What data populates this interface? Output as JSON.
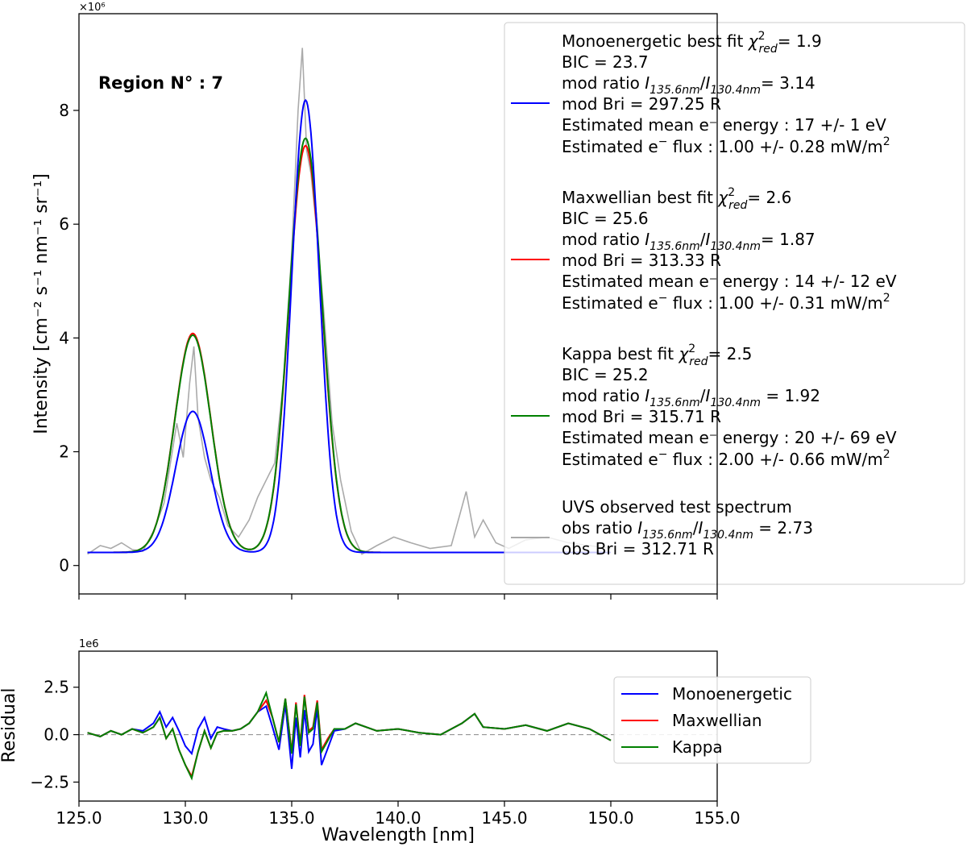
{
  "chart_data": [
    {
      "type": "line",
      "panel": "spectrum",
      "annotation": "Region N° : 7",
      "xlabel": "",
      "ylabel": "Intensity [cm⁻² s⁻¹ nm⁻¹ sr⁻¹]",
      "y_scale_label": "×10⁶",
      "xlim": [
        125.0,
        155.0
      ],
      "ylim": [
        -0.5,
        9.7
      ],
      "yticks": [
        0,
        2,
        4,
        6,
        8
      ],
      "xticks": [
        125.0,
        130.0,
        135.0,
        140.0,
        145.0,
        150.0,
        155.0
      ],
      "grid": false,
      "legend_position": "right",
      "model_params": {
        "Monoenergetic": {
          "peak1": {
            "center": 130.35,
            "height": 2.48,
            "sigma": 0.8
          },
          "peak2": {
            "center": 135.65,
            "height": 7.95,
            "sigma": 0.65
          },
          "baseline": 0.23
        },
        "Maxwellian": {
          "peak1": {
            "center": 130.35,
            "height": 3.85,
            "sigma": 0.85
          },
          "peak2": {
            "center": 135.65,
            "height": 7.15,
            "sigma": 0.78
          },
          "baseline": 0.23
        },
        "Kappa": {
          "peak1": {
            "center": 130.35,
            "height": 3.82,
            "sigma": 0.85
          },
          "peak2": {
            "center": 135.65,
            "height": 7.28,
            "sigma": 0.78
          },
          "baseline": 0.23
        }
      },
      "observed_series": {
        "name": "UVS observed test spectrum",
        "x": [
          125.4,
          126.0,
          126.5,
          127.0,
          127.5,
          128.0,
          128.5,
          129.0,
          129.3,
          129.6,
          129.9,
          130.2,
          130.4,
          130.6,
          130.9,
          131.2,
          131.6,
          132.0,
          132.5,
          133.0,
          133.4,
          133.8,
          134.2,
          134.6,
          135.0,
          135.3,
          135.5,
          135.7,
          135.9,
          136.2,
          136.5,
          136.9,
          137.3,
          137.8,
          138.3,
          139.0,
          139.8,
          140.6,
          141.5,
          142.5,
          143.2,
          143.6,
          144.0,
          144.6,
          145.2,
          146.0,
          147.0,
          148.0,
          149.0,
          150.0
        ],
        "values": [
          0.2,
          0.35,
          0.3,
          0.4,
          0.28,
          0.25,
          0.6,
          1.1,
          1.8,
          2.5,
          1.9,
          3.2,
          3.85,
          2.6,
          1.9,
          1.5,
          1.2,
          0.7,
          0.5,
          0.8,
          1.2,
          1.5,
          1.8,
          3.2,
          5.5,
          8.0,
          9.1,
          7.3,
          6.9,
          5.8,
          4.5,
          2.5,
          1.5,
          0.6,
          0.2,
          0.35,
          0.5,
          0.4,
          0.3,
          0.35,
          1.3,
          0.5,
          0.8,
          0.4,
          0.3,
          0.45,
          0.5,
          0.4,
          0.35,
          0.3
        ]
      },
      "legend_entries": [
        {
          "name": "Monoenergetic",
          "color": "#0000ff",
          "lines": [
            "Monoenergetic best fit χ²red=  1.9",
            "BIC =  23.7",
            "mod ratio I135.6nm/I130.4nm=  3.14",
            "mod Bri = 297.25 R",
            "Estimated mean e⁻ energy :   17 +/-   1 eV",
            "Estimated e⁻ flux :  1.00 +/- 0.28  mW/m²"
          ]
        },
        {
          "name": "Maxwellian",
          "color": "#ff0000",
          "lines": [
            "Maxwellian best fit χ²red=  2.6",
            "BIC =  25.6",
            "mod ratio I135.6nm/I130.4nm=  1.87",
            "mod Bri = 313.33 R",
            "Estimated mean e⁻ energy :   14 +/-  12 eV",
            "Estimated e⁻ flux :  1.00 +/- 0.31  mW/m²"
          ]
        },
        {
          "name": "Kappa",
          "color": "#008000",
          "lines": [
            "Kappa best fit χ²red=  2.5",
            "BIC =  25.2",
            "mod ratio I135.6nm/I130.4nm  =  1.92",
            "mod Bri = 315.71 R",
            "Estimated mean e⁻ energy :   20 +/-  69 eV",
            "Estimated e⁻ flux :  2.00 +/- 0.66  mW/m²"
          ]
        },
        {
          "name": "UVS observed test spectrum",
          "color": "#aaaaaa",
          "lines": [
            "UVS observed test spectrum",
            " obs ratio I135.6nm/I130.4nm  =  2.73",
            " obs Bri = 312.71 R"
          ]
        }
      ]
    },
    {
      "type": "line",
      "panel": "residual",
      "xlabel": "Wavelength [nm]",
      "ylabel": "Residual",
      "y_scale_label": "1e6",
      "xlim": [
        125.0,
        155.0
      ],
      "ylim": [
        -3.5,
        4.4
      ],
      "yticks": [
        -2.5,
        0.0,
        2.5
      ],
      "ytick_labels": [
        "−2.5",
        "0.0",
        "2.5"
      ],
      "xticks": [
        125.0,
        130.0,
        135.0,
        140.0,
        145.0,
        150.0,
        155.0
      ],
      "xtick_labels": [
        "125.0",
        "130.0",
        "135.0",
        "140.0",
        "145.0",
        "150.0",
        "155.0"
      ],
      "zero_line": "dashed",
      "legend_position": "right",
      "x": [
        125.4,
        126.0,
        126.5,
        127.0,
        127.5,
        128.0,
        128.5,
        128.8,
        129.1,
        129.4,
        129.7,
        130.0,
        130.3,
        130.6,
        130.9,
        131.2,
        131.5,
        131.8,
        132.2,
        132.6,
        133.0,
        133.4,
        133.8,
        134.1,
        134.4,
        134.7,
        135.0,
        135.2,
        135.4,
        135.6,
        135.8,
        136.0,
        136.2,
        136.4,
        136.7,
        137.0,
        137.5,
        138.0,
        139.0,
        140.0,
        141.0,
        142.0,
        143.0,
        143.6,
        144.0,
        145.0,
        146.0,
        147.0,
        148.0,
        149.0,
        150.0
      ],
      "series": [
        {
          "name": "Monoenergetic",
          "color": "#0000ff",
          "values": [
            0.1,
            -0.1,
            0.2,
            0.0,
            0.3,
            0.2,
            0.6,
            1.2,
            0.4,
            0.9,
            0.2,
            -0.6,
            -1.0,
            0.3,
            0.9,
            -0.2,
            0.4,
            0.3,
            0.2,
            0.3,
            0.6,
            1.2,
            1.5,
            0.4,
            -0.8,
            1.6,
            -1.8,
            0.9,
            -1.2,
            1.3,
            -0.9,
            -0.5,
            1.4,
            -1.6,
            -0.7,
            0.2,
            0.3,
            0.6,
            0.2,
            0.3,
            0.1,
            0.0,
            0.6,
            1.1,
            0.4,
            0.3,
            0.5,
            0.2,
            0.6,
            0.3,
            -0.3
          ]
        },
        {
          "name": "Maxwellian",
          "color": "#ff0000",
          "values": [
            0.1,
            -0.1,
            0.2,
            0.0,
            0.3,
            0.1,
            0.4,
            0.9,
            -0.2,
            0.3,
            -0.8,
            -1.6,
            -2.2,
            -0.9,
            0.2,
            -0.7,
            0.1,
            0.2,
            0.2,
            0.3,
            0.6,
            1.2,
            1.8,
            0.9,
            -0.4,
            1.9,
            -0.9,
            1.7,
            -0.5,
            2.1,
            0.2,
            0.4,
            1.8,
            -0.8,
            -0.2,
            0.3,
            0.3,
            0.6,
            0.2,
            0.3,
            0.1,
            0.0,
            0.6,
            1.1,
            0.4,
            0.3,
            0.5,
            0.2,
            0.6,
            0.3,
            -0.3
          ]
        },
        {
          "name": "Kappa",
          "color": "#008000",
          "values": [
            0.1,
            -0.1,
            0.2,
            0.0,
            0.3,
            0.1,
            0.4,
            0.9,
            -0.2,
            0.3,
            -0.8,
            -1.6,
            -2.3,
            -0.9,
            0.2,
            -0.7,
            0.1,
            0.2,
            0.2,
            0.3,
            0.6,
            1.2,
            2.2,
            0.9,
            -0.4,
            1.9,
            -1.0,
            1.6,
            -0.6,
            2.0,
            0.1,
            0.3,
            1.7,
            -0.9,
            -0.3,
            0.3,
            0.3,
            0.6,
            0.2,
            0.3,
            0.1,
            0.0,
            0.6,
            1.1,
            0.4,
            0.3,
            0.5,
            0.2,
            0.6,
            0.3,
            -0.3
          ]
        }
      ]
    }
  ]
}
